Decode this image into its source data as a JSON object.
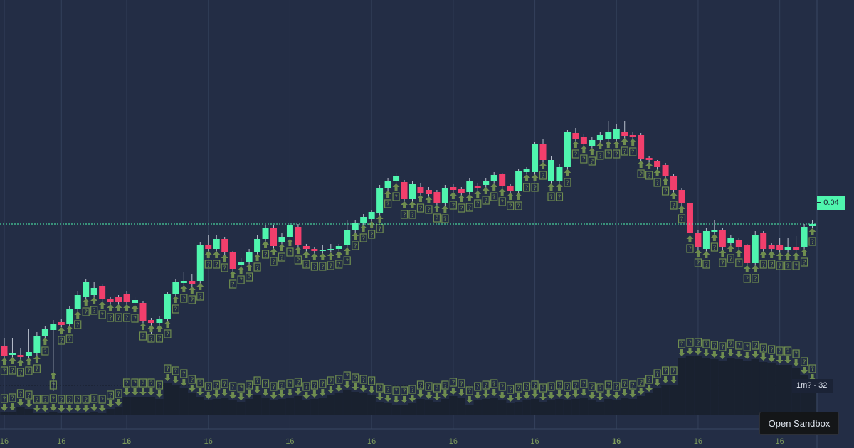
{
  "chart_data": {
    "type": "candlestick",
    "price_unit": 0.0001,
    "ohlc_e4": [
      [
        228,
        240,
        205,
        215
      ],
      [
        216,
        240,
        210,
        218
      ],
      [
        216,
        225,
        208,
        213
      ],
      [
        215,
        253,
        212,
        220
      ],
      [
        218,
        248,
        212,
        243
      ],
      [
        243,
        256,
        240,
        252
      ],
      [
        251,
        265,
        165,
        260
      ],
      [
        262,
        267,
        255,
        258
      ],
      [
        260,
        285,
        255,
        280
      ],
      [
        280,
        306,
        276,
        300
      ],
      [
        298,
        322,
        294,
        318
      ],
      [
        300,
        318,
        296,
        310
      ],
      [
        313,
        316,
        290,
        294
      ],
      [
        294,
        298,
        285,
        290
      ],
      [
        298,
        300,
        285,
        290
      ],
      [
        302,
        306,
        284,
        290
      ],
      [
        289,
        297,
        285,
        293
      ],
      [
        289,
        292,
        260,
        264
      ],
      [
        265,
        268,
        245,
        261
      ],
      [
        261,
        270,
        255,
        267
      ],
      [
        267,
        305,
        262,
        302
      ],
      [
        302,
        322,
        298,
        318
      ],
      [
        317,
        332,
        314,
        320
      ],
      [
        320,
        330,
        312,
        315
      ],
      [
        320,
        375,
        316,
        371
      ],
      [
        371,
        385,
        360,
        365
      ],
      [
        365,
        385,
        360,
        379
      ],
      [
        379,
        382,
        355,
        360
      ],
      [
        360,
        362,
        325,
        337
      ],
      [
        343,
        352,
        338,
        347
      ],
      [
        347,
        365,
        343,
        361
      ],
      [
        361,
        385,
        356,
        379
      ],
      [
        379,
        398,
        375,
        394
      ],
      [
        395,
        398,
        365,
        369
      ],
      [
        375,
        388,
        370,
        382
      ],
      [
        382,
        402,
        378,
        398
      ],
      [
        396,
        400,
        366,
        371
      ],
      [
        369,
        372,
        360,
        365
      ],
      [
        365,
        368,
        350,
        362
      ],
      [
        362,
        370,
        355,
        364
      ],
      [
        363,
        372,
        360,
        365
      ],
      [
        365,
        372,
        362,
        369
      ],
      [
        370,
        405,
        366,
        391
      ],
      [
        391,
        406,
        387,
        402
      ],
      [
        402,
        414,
        398,
        410
      ],
      [
        407,
        420,
        402,
        417
      ],
      [
        415,
        455,
        410,
        450
      ],
      [
        450,
        464,
        445,
        460
      ],
      [
        460,
        472,
        455,
        467
      ],
      [
        459,
        462,
        430,
        435
      ],
      [
        435,
        460,
        430,
        456
      ],
      [
        452,
        458,
        440,
        444
      ],
      [
        448,
        452,
        438,
        442
      ],
      [
        445,
        448,
        426,
        430
      ],
      [
        429,
        455,
        425,
        450
      ],
      [
        452,
        456,
        444,
        448
      ],
      [
        449,
        452,
        440,
        444
      ],
      [
        445,
        465,
        440,
        461
      ],
      [
        454,
        458,
        446,
        450
      ],
      [
        455,
        464,
        450,
        460
      ],
      [
        460,
        473,
        455,
        469
      ],
      [
        470,
        472,
        448,
        453
      ],
      [
        453,
        456,
        440,
        447
      ],
      [
        447,
        478,
        442,
        475
      ],
      [
        473,
        480,
        470,
        477
      ],
      [
        473,
        516,
        468,
        513
      ],
      [
        513,
        520,
        485,
        490
      ],
      [
        460,
        495,
        455,
        490
      ],
      [
        460,
        485,
        455,
        480
      ],
      [
        480,
        532,
        476,
        529
      ],
      [
        528,
        535,
        516,
        520
      ],
      [
        522,
        526,
        508,
        513
      ],
      [
        510,
        522,
        506,
        518
      ],
      [
        518,
        530,
        514,
        525
      ],
      [
        520,
        545,
        516,
        530
      ],
      [
        520,
        540,
        516,
        533
      ],
      [
        529,
        545,
        520,
        524
      ],
      [
        525,
        530,
        518,
        523
      ],
      [
        525,
        528,
        488,
        492
      ],
      [
        493,
        496,
        486,
        490
      ],
      [
        488,
        490,
        476,
        480
      ],
      [
        483,
        486,
        464,
        468
      ],
      [
        468,
        470,
        444,
        448
      ],
      [
        448,
        450,
        425,
        429
      ],
      [
        429,
        432,
        383,
        387
      ],
      [
        388,
        392,
        362,
        367
      ],
      [
        365,
        395,
        360,
        390
      ],
      [
        389,
        405,
        380,
        391
      ],
      [
        392,
        395,
        362,
        367
      ],
      [
        373,
        385,
        368,
        380
      ],
      [
        377,
        380,
        362,
        367
      ],
      [
        370,
        372,
        340,
        345
      ],
      [
        345,
        390,
        340,
        385
      ],
      [
        387,
        390,
        360,
        365
      ],
      [
        370,
        373,
        360,
        365
      ],
      [
        370,
        380,
        358,
        363
      ],
      [
        363,
        380,
        358,
        368
      ],
      [
        368,
        383,
        358,
        363
      ],
      [
        368,
        400,
        364,
        396
      ],
      [
        397,
        406,
        394,
        400
      ]
    ],
    "volume": [
      3,
      4,
      10,
      8,
      2,
      2,
      3,
      2,
      2,
      2,
      2,
      3,
      2,
      8,
      10,
      25,
      25,
      25,
      25,
      22,
      45,
      42,
      38,
      30,
      25,
      20,
      22,
      24,
      20,
      18,
      22,
      28,
      24,
      20,
      22,
      24,
      26,
      20,
      22,
      24,
      28,
      30,
      35,
      32,
      30,
      28,
      18,
      16,
      14,
      14,
      16,
      22,
      20,
      18,
      22,
      26,
      24,
      14,
      20,
      22,
      24,
      20,
      16,
      18,
      20,
      22,
      18,
      20,
      22,
      20,
      22,
      24,
      20,
      18,
      22,
      20,
      24,
      22,
      26,
      30,
      38,
      42,
      42,
      80,
      82,
      82,
      80,
      78,
      76,
      80,
      78,
      76,
      78,
      74,
      72,
      70,
      70,
      66,
      55,
      45
    ],
    "ylim_e4": [
      85,
      685
    ],
    "x_ticks": [
      {
        "index": 0,
        "label": "16",
        "bold": false
      },
      {
        "index": 7,
        "label": "16",
        "bold": false
      },
      {
        "index": 15,
        "label": "16",
        "bold": true
      },
      {
        "index": 25,
        "label": "16",
        "bold": false
      },
      {
        "index": 35,
        "label": "16",
        "bold": false
      },
      {
        "index": 45,
        "label": "16",
        "bold": false
      },
      {
        "index": 55,
        "label": "16",
        "bold": false
      },
      {
        "index": 65,
        "label": "16",
        "bold": false
      },
      {
        "index": 75,
        "label": "16",
        "bold": true
      },
      {
        "index": 85,
        "label": "16",
        "bold": false
      },
      {
        "index": 95,
        "label": "16",
        "bold": false
      }
    ],
    "last_price_label": "0.04",
    "last_price_e4": 400,
    "marker_glyph": "?",
    "colors": {
      "up": "#4ff5ae",
      "down": "#f23f6c",
      "marker": "#6f8d4f",
      "volume": "#19212f",
      "axis_text": "#7d9a5c",
      "grid": "#33405a"
    }
  },
  "volume_label": "1m? - 32",
  "sandbox_button": "Open Sandbox"
}
